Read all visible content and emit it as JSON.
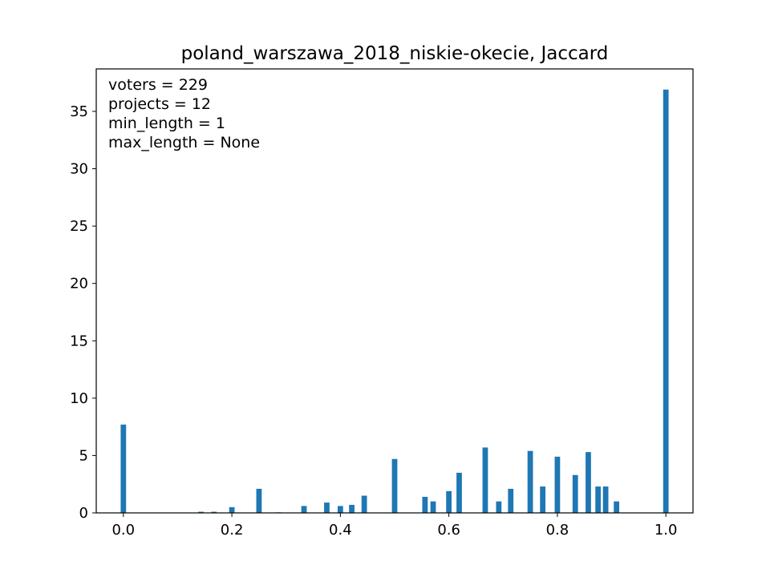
{
  "chart_data": {
    "type": "bar",
    "title": "poland_warszawa_2018_niskie-okecie, Jaccard",
    "xlabel": "",
    "ylabel": "",
    "xlim": [
      -0.05,
      1.05
    ],
    "ylim": [
      0,
      38.7
    ],
    "grid": false,
    "legend": "none",
    "bar_color": "#1f77b4",
    "x_ticks": [
      {
        "value": 0.0,
        "label": "0.0"
      },
      {
        "value": 0.2,
        "label": "0.2"
      },
      {
        "value": 0.4,
        "label": "0.4"
      },
      {
        "value": 0.6,
        "label": "0.6"
      },
      {
        "value": 0.8,
        "label": "0.8"
      },
      {
        "value": 1.0,
        "label": "1.0"
      }
    ],
    "y_ticks": [
      {
        "value": 0,
        "label": "0"
      },
      {
        "value": 5,
        "label": "5"
      },
      {
        "value": 10,
        "label": "10"
      },
      {
        "value": 15,
        "label": "15"
      },
      {
        "value": 20,
        "label": "20"
      },
      {
        "value": 25,
        "label": "25"
      },
      {
        "value": 30,
        "label": "30"
      },
      {
        "value": 35,
        "label": "35"
      }
    ],
    "annotations": [
      "voters = 229",
      "projects = 12",
      "min_length = 1",
      "max_length = None"
    ],
    "bin_width": 0.01,
    "bars": [
      {
        "x": 0.0,
        "value": 7.7
      },
      {
        "x": 0.143,
        "value": 0.1
      },
      {
        "x": 0.167,
        "value": 0.1
      },
      {
        "x": 0.2,
        "value": 0.5
      },
      {
        "x": 0.25,
        "value": 2.1
      },
      {
        "x": 0.286,
        "value": 0.05
      },
      {
        "x": 0.333,
        "value": 0.6
      },
      {
        "x": 0.375,
        "value": 0.9
      },
      {
        "x": 0.4,
        "value": 0.6
      },
      {
        "x": 0.421,
        "value": 0.7
      },
      {
        "x": 0.444,
        "value": 1.5
      },
      {
        "x": 0.5,
        "value": 4.7
      },
      {
        "x": 0.556,
        "value": 1.4
      },
      {
        "x": 0.571,
        "value": 1.0
      },
      {
        "x": 0.6,
        "value": 1.9
      },
      {
        "x": 0.619,
        "value": 3.5
      },
      {
        "x": 0.667,
        "value": 5.7
      },
      {
        "x": 0.692,
        "value": 1.0
      },
      {
        "x": 0.714,
        "value": 2.1
      },
      {
        "x": 0.75,
        "value": 5.4
      },
      {
        "x": 0.773,
        "value": 2.3
      },
      {
        "x": 0.8,
        "value": 4.9
      },
      {
        "x": 0.833,
        "value": 3.3
      },
      {
        "x": 0.857,
        "value": 5.3
      },
      {
        "x": 0.875,
        "value": 2.3
      },
      {
        "x": 0.889,
        "value": 2.3
      },
      {
        "x": 0.909,
        "value": 1.0
      },
      {
        "x": 1.0,
        "value": 36.9
      }
    ]
  }
}
